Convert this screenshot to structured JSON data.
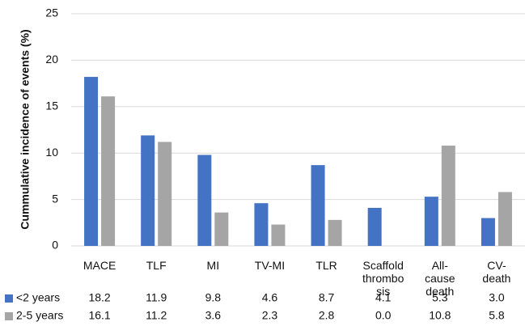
{
  "chart_data": {
    "type": "bar",
    "y_label": "Cummulative incidence of events (%)",
    "categories": [
      "MACE",
      "TLF",
      "MI",
      "TV-MI",
      "TLR",
      "Scaffold\nthrombo\nsis",
      "All-\ncause\ndeath",
      "CV-\ndeath"
    ],
    "series": [
      {
        "name": "<2 years",
        "color": "#4472c4",
        "values": [
          18.2,
          11.9,
          9.8,
          4.6,
          8.7,
          4.1,
          5.3,
          3.0
        ],
        "value_labels": [
          "18.2",
          "11.9",
          "9.8",
          "4.6",
          "8.7",
          "4.1",
          "5.3",
          "3.0"
        ]
      },
      {
        "name": "2-5 years",
        "color": "#a5a5a5",
        "values": [
          16.1,
          11.2,
          3.6,
          2.3,
          2.8,
          0.0,
          10.8,
          5.8
        ],
        "value_labels": [
          "16.1",
          "11.2",
          "3.6",
          "2.3",
          "2.8",
          "0.0",
          "10.8",
          "5.8"
        ]
      }
    ],
    "ylim": [
      0,
      25
    ],
    "yticks": [
      0,
      5,
      10,
      15,
      20,
      25
    ],
    "grid": true
  }
}
